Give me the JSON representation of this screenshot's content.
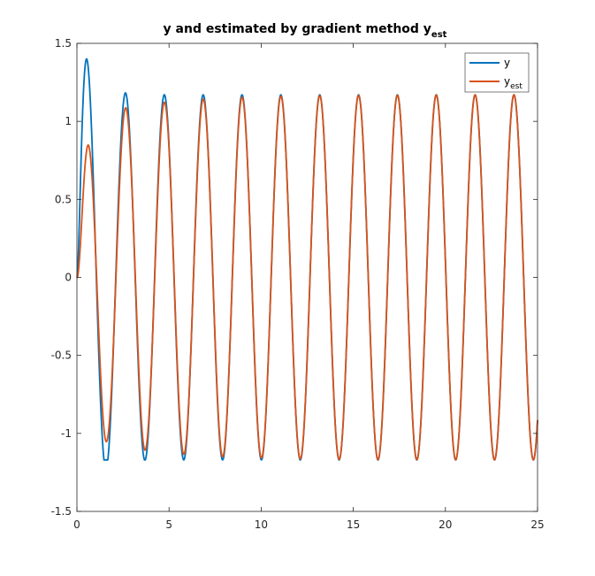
{
  "chart_data": {
    "type": "line",
    "title": "y and estimated by gradient method y",
    "title_subscript": "est",
    "xlabel": "",
    "ylabel": "",
    "xlim": [
      0,
      25
    ],
    "ylim": [
      -1.5,
      1.5
    ],
    "xticks": [
      0,
      5,
      10,
      15,
      20,
      25
    ],
    "yticks": [
      -1.5,
      -1,
      -0.5,
      0,
      0.5,
      1,
      1.5
    ],
    "xtick_labels": [
      "0",
      "5",
      "10",
      "15",
      "20",
      "25"
    ],
    "ytick_labels": [
      "-1.5",
      "-1",
      "-0.5",
      "0",
      "0.5",
      "1",
      "1.5"
    ],
    "grid": false,
    "legend_position": "top-right",
    "series": [
      {
        "name": "y",
        "color": "#0072BD",
        "model": {
          "amplitude": 1.17,
          "omega": 2.98,
          "overshoot": 0.55,
          "decay": 1.5
        },
        "peaks": [
          [
            0.75,
            1.26
          ],
          [
            2.9,
            1.17
          ],
          [
            5.0,
            1.17
          ],
          [
            7.1,
            1.17
          ],
          [
            9.2,
            1.17
          ],
          [
            11.3,
            1.17
          ],
          [
            13.4,
            1.17
          ],
          [
            15.5,
            1.17
          ],
          [
            17.6,
            1.17
          ],
          [
            19.7,
            1.17
          ],
          [
            21.8,
            1.17
          ],
          [
            23.9,
            1.17
          ]
        ],
        "troughs": [
          [
            1.85,
            -1.17
          ],
          [
            3.95,
            -1.17
          ],
          [
            6.05,
            -1.17
          ],
          [
            8.15,
            -1.17
          ],
          [
            10.25,
            -1.17
          ],
          [
            12.35,
            -1.17
          ],
          [
            14.45,
            -1.17
          ],
          [
            16.55,
            -1.17
          ],
          [
            18.65,
            -1.17
          ],
          [
            20.75,
            -1.17
          ],
          [
            22.85,
            -1.17
          ],
          [
            24.95,
            -1.17
          ]
        ]
      },
      {
        "name": "y",
        "name_subscript": "est",
        "color": "#D95319",
        "model": {
          "amplitude": 1.17,
          "omega": 2.98,
          "decay": 0.65
        },
        "peaks": [
          [
            0.8,
            1.02
          ],
          [
            2.95,
            1.06
          ],
          [
            5.05,
            1.11
          ],
          [
            7.15,
            1.13
          ],
          [
            9.25,
            1.15
          ],
          [
            11.35,
            1.16
          ],
          [
            13.45,
            1.17
          ],
          [
            15.55,
            1.17
          ],
          [
            17.6,
            1.17
          ],
          [
            19.7,
            1.17
          ],
          [
            21.8,
            1.17
          ],
          [
            23.9,
            1.17
          ]
        ],
        "troughs": [
          [
            1.85,
            -1.02
          ],
          [
            3.95,
            -1.08
          ],
          [
            6.05,
            -1.12
          ],
          [
            8.15,
            -1.15
          ],
          [
            10.25,
            -1.16
          ],
          [
            12.35,
            -1.17
          ],
          [
            14.45,
            -1.17
          ],
          [
            16.55,
            -1.17
          ],
          [
            18.65,
            -1.17
          ],
          [
            20.75,
            -1.17
          ],
          [
            22.85,
            -1.17
          ],
          [
            24.95,
            -1.17
          ]
        ]
      }
    ]
  }
}
